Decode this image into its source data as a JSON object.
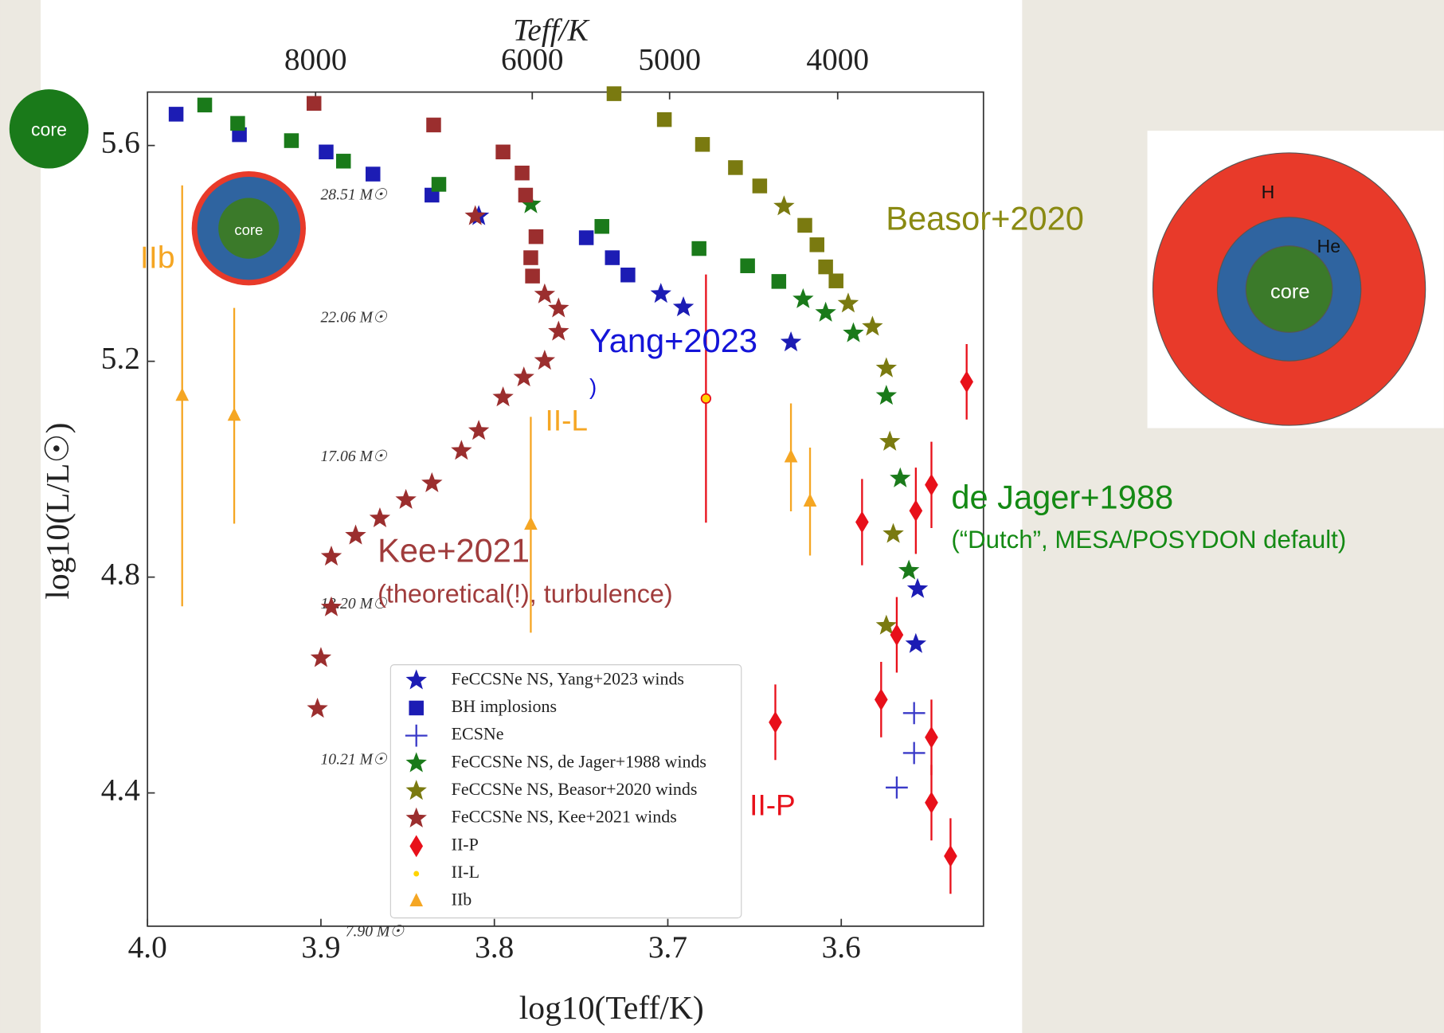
{
  "chart_data": {
    "type": "scatter",
    "x_label": "log10(Teff/K)",
    "y_label": "log10(L/L☉)",
    "top_x_label": "Teff/K",
    "xlim": [
      4.0,
      3.518
    ],
    "ylim": [
      4.153,
      5.699
    ],
    "xticks": [
      {
        "value": 4.0,
        "label": "4.0"
      },
      3.9,
      3.8,
      3.7,
      3.6
    ],
    "yticks": [
      4.4,
      4.8,
      5.2,
      5.6
    ],
    "top_xticks": [
      8000,
      6000,
      5000,
      4000
    ],
    "legend": "lower center",
    "series": [
      {
        "name": "FeCCSNe NS, Yang+2023 winds",
        "marker": "star",
        "color": "#1c1cb4",
        "x": [
          3.809,
          3.704,
          3.691,
          3.629,
          3.556,
          3.557
        ],
        "values": [
          5.469,
          5.325,
          5.3,
          5.235,
          4.778,
          4.676
        ],
        "implosions": {
          "x": [
            3.9835,
            3.947,
            3.897,
            3.87,
            3.836,
            3.747,
            3.732,
            3.723
          ],
          "values": [
            5.658,
            5.62,
            5.588,
            5.547,
            5.508,
            5.429,
            5.392,
            5.36
          ]
        }
      },
      {
        "name": "BH implosions",
        "marker": "square",
        "color": "#1c1cb4",
        "x": [],
        "values": []
      },
      {
        "name": "ECSNe",
        "marker": "plus",
        "color": "#3a3ac8",
        "x": [
          3.558,
          3.558,
          3.568
        ],
        "values": [
          4.548,
          4.474,
          4.41
        ]
      },
      {
        "name": "FeCCSNe NS, de Jager+1988 winds",
        "marker": "star",
        "color": "#1a7a1a",
        "x": [
          3.779,
          3.622,
          3.609,
          3.593,
          3.574,
          3.566,
          3.561
        ],
        "values": [
          5.491,
          5.315,
          5.29,
          5.252,
          5.136,
          4.983,
          4.812
        ],
        "implosions": {
          "x": [
            3.967,
            3.948,
            3.917,
            3.887,
            3.832,
            3.738,
            3.682,
            3.654,
            3.636
          ],
          "values": [
            5.675,
            5.641,
            5.609,
            5.571,
            5.528,
            5.45,
            5.409,
            5.377,
            5.348
          ]
        }
      },
      {
        "name": "FeCCSNe NS, Beasor+2020 winds",
        "marker": "star",
        "color": "#7a7a10",
        "x": [
          3.633,
          3.596,
          3.582,
          3.574,
          3.572,
          3.57,
          3.574
        ],
        "values": [
          5.487,
          5.307,
          5.264,
          5.187,
          5.051,
          4.88,
          4.71
        ],
        "implosions": {
          "x": [
            3.731,
            3.702,
            3.68,
            3.661,
            3.647,
            3.621,
            3.614,
            3.609,
            3.603
          ],
          "values": [
            5.696,
            5.648,
            5.602,
            5.559,
            5.525,
            5.452,
            5.416,
            5.375,
            5.349
          ]
        }
      },
      {
        "name": "FeCCSNe NS, Kee+2021 winds",
        "marker": "star",
        "color": "#9b2e2e",
        "x": [
          3.902,
          3.9,
          3.894,
          3.894,
          3.88,
          3.866,
          3.851,
          3.836,
          3.819,
          3.809,
          3.795,
          3.783,
          3.771,
          3.763,
          3.763,
          3.771,
          3.811
        ],
        "values": [
          4.556,
          4.65,
          4.744,
          4.838,
          4.877,
          4.909,
          4.943,
          4.974,
          5.034,
          5.071,
          5.133,
          5.17,
          5.201,
          5.255,
          5.298,
          5.324,
          5.469
        ],
        "implosions": {
          "x": [
            3.904,
            3.835,
            3.795,
            3.784,
            3.782,
            3.776,
            3.779,
            3.778
          ],
          "values": [
            5.678,
            5.638,
            5.588,
            5.549,
            5.508,
            5.431,
            5.392,
            5.358
          ]
        }
      },
      {
        "name": "II-P",
        "marker": "diamond",
        "color": "#e8101a",
        "x": [
          3.5277,
          3.548,
          3.557,
          3.588,
          3.568,
          3.577,
          3.638,
          3.548,
          3.548,
          3.537
        ],
        "values": [
          5.162,
          4.971,
          4.923,
          4.902,
          4.693,
          4.573,
          4.531,
          4.503,
          4.382,
          4.283
        ],
        "errors": [
          0.07,
          0.08,
          0.08,
          0.08,
          0.07,
          0.07,
          0.07,
          0.07,
          0.07,
          0.07
        ]
      },
      {
        "name": "II-L",
        "marker": "circle",
        "color": "#ffd400",
        "edge": "#e8101a",
        "x": [
          3.678
        ],
        "values": [
          5.131
        ],
        "errors": [
          0.23
        ]
      },
      {
        "name": "IIb",
        "marker": "triangle",
        "color": "#f5a623",
        "x": [
          3.98,
          3.95,
          3.779,
          3.629,
          3.618
        ],
        "values": [
          5.136,
          5.099,
          4.897,
          5.022,
          4.94
        ],
        "errors": [
          0.39,
          0.2,
          0.2,
          0.1,
          0.1
        ]
      }
    ],
    "track_labels": [
      "28.51 M☉",
      "22.06 M☉",
      "17.06 M☉",
      "13.20 M☉",
      "10.21 M☉",
      "7.90 M☉"
    ],
    "annotations": [
      {
        "text": "Beasor+2020",
        "color": "#8a8a12"
      },
      {
        "text": "Yang+2023",
        "color": "#1414d8"
      },
      {
        "text": ")",
        "color": "#1414d8"
      },
      {
        "text": "de Jager+1988",
        "color": "#148a14"
      },
      {
        "text": "(“Dutch”, MESA/POSYDON default)",
        "color": "#148a14"
      },
      {
        "text": "Kee+2021",
        "color": "#a03c3c"
      },
      {
        "text": "(theoretical(!), turbulence)",
        "color": "#a03c3c"
      },
      {
        "text": "IIb",
        "color": "#f5a623"
      },
      {
        "text": "II-L",
        "color": "#f5a623"
      },
      {
        "text": "II-P",
        "color": "#e8101a"
      }
    ]
  },
  "slide": {
    "core_badge": "core",
    "inset_core": "core",
    "shells": {
      "outer": "H",
      "middle": "He",
      "core": "core"
    }
  }
}
